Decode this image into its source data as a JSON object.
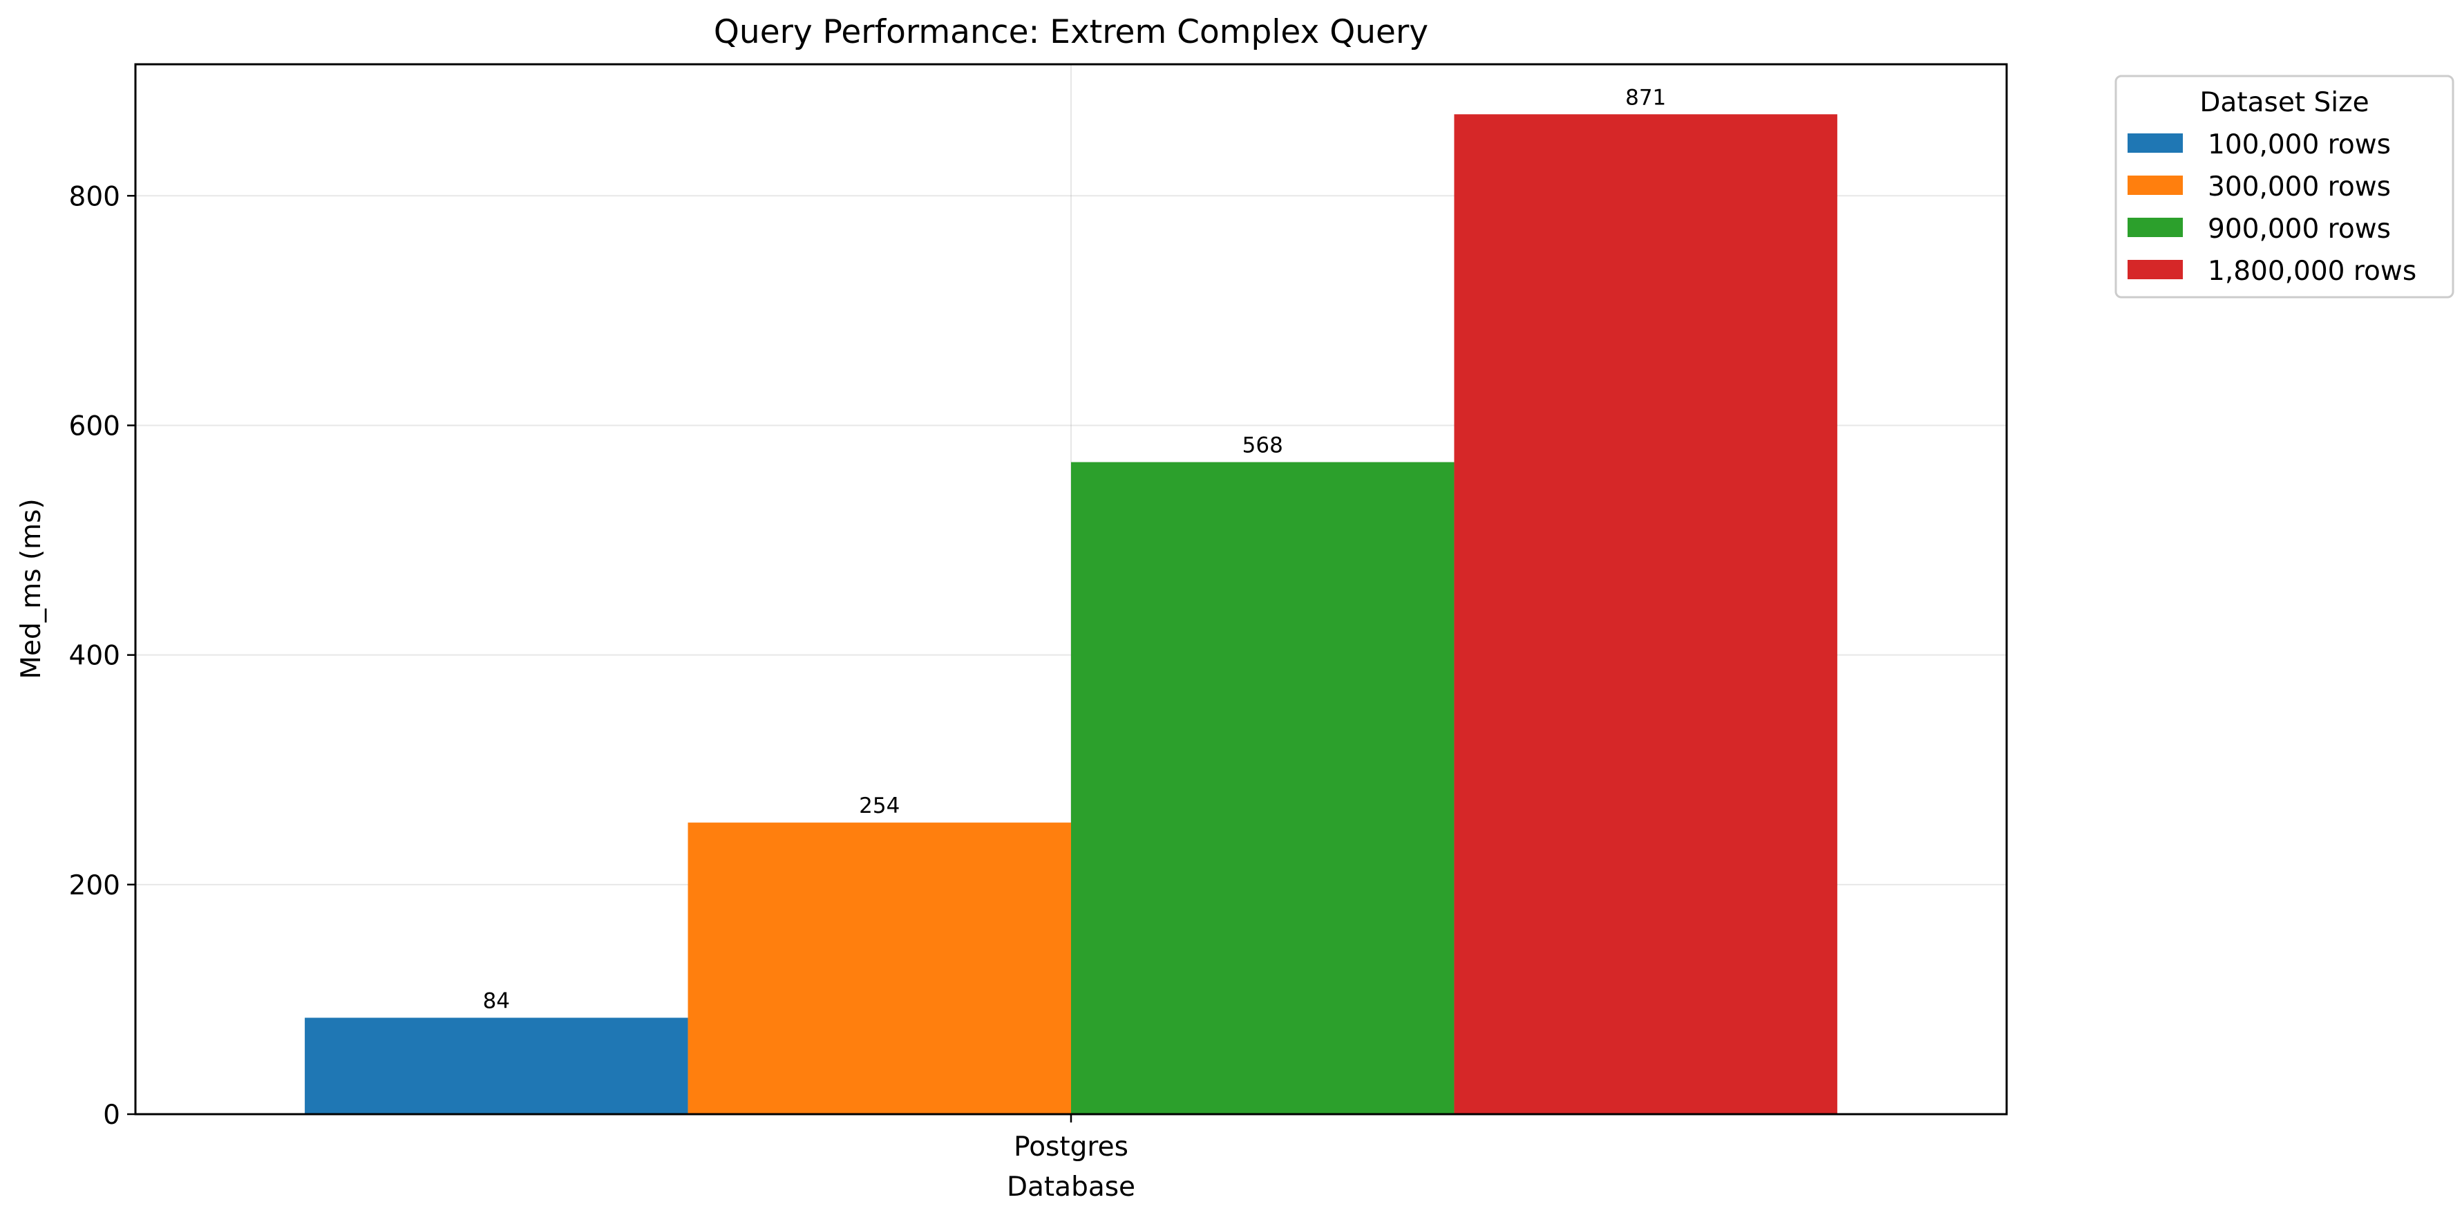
{
  "chart_data": {
    "type": "bar",
    "title": "Query Performance: Extrem Complex Query",
    "xlabel": "Database",
    "ylabel": "Med_ms (ms)",
    "categories": [
      "Postgres"
    ],
    "ylim": [
      0,
      914.55
    ],
    "yticks": [
      0,
      200,
      400,
      600,
      800
    ],
    "grid": true,
    "legend": {
      "title": "Dataset Size",
      "placement": "outside-top-right"
    },
    "series": [
      {
        "name": "100,000 rows",
        "values": [
          84
        ],
        "labels": [
          "84"
        ],
        "color": "#1f77b4"
      },
      {
        "name": "300,000 rows",
        "values": [
          254
        ],
        "labels": [
          "254"
        ],
        "color": "#ff7f0e"
      },
      {
        "name": "900,000 rows",
        "values": [
          568
        ],
        "labels": [
          "568"
        ],
        "color": "#2ca02c"
      },
      {
        "name": "1,800,000 rows",
        "values": [
          871
        ],
        "labels": [
          "871"
        ],
        "color": "#d62728"
      }
    ]
  }
}
